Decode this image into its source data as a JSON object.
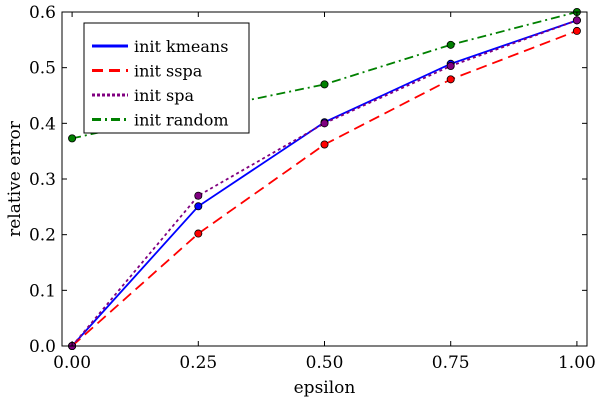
{
  "chart_data": {
    "type": "line",
    "title": "",
    "xlabel": "epsilon",
    "ylabel": "relative error",
    "x": [
      0.0,
      0.25,
      0.5,
      0.75,
      1.0
    ],
    "xlim": [
      -0.02,
      1.02
    ],
    "ylim": [
      0.0,
      0.6
    ],
    "xticks": [
      0.0,
      0.25,
      0.5,
      0.75,
      1.0
    ],
    "xtick_labels": [
      "0.00",
      "0.25",
      "0.50",
      "0.75",
      "1.00"
    ],
    "yticks": [
      0.0,
      0.1,
      0.2,
      0.3,
      0.4,
      0.5,
      0.6
    ],
    "ytick_labels": [
      "0.0",
      "0.1",
      "0.2",
      "0.3",
      "0.4",
      "0.5",
      "0.6"
    ],
    "grid": false,
    "legend_position": "top-left",
    "series": [
      {
        "name": "init kmeans",
        "color": "#0000ff",
        "style": "solid",
        "values": [
          0.0,
          0.251,
          0.402,
          0.507,
          0.585
        ]
      },
      {
        "name": "init sspa",
        "color": "#ff0000",
        "style": "dashed",
        "values": [
          0.0,
          0.202,
          0.362,
          0.479,
          0.566
        ]
      },
      {
        "name": "init spa",
        "color": "#800080",
        "style": "dotted",
        "values": [
          0.0,
          0.27,
          0.4,
          0.503,
          0.585
        ]
      },
      {
        "name": "init random",
        "color": "#008000",
        "style": "dashdot",
        "values": [
          0.373,
          0.423,
          0.47,
          0.541,
          0.6
        ]
      }
    ]
  }
}
